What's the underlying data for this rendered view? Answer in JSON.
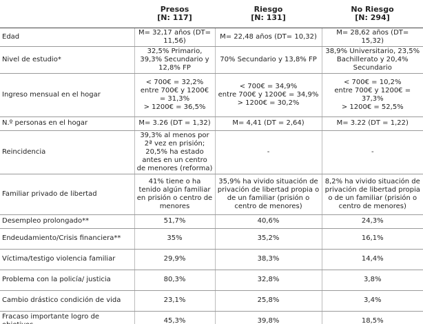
{
  "table": {
    "header": [
      {
        "title": "Presos",
        "n": "[N: 117]"
      },
      {
        "title": "Riesgo",
        "n": "[N: 131]"
      },
      {
        "title": "No Riesgo",
        "n": "[N: 294]"
      }
    ],
    "rows": [
      {
        "label": "Edad",
        "cells": [
          [
            "M= 32,17 años (DT= 11,56)"
          ],
          [
            "M= 22,48 años (DT= 10,32)"
          ],
          [
            "M= 28,62 años (DT= 15,32)"
          ]
        ]
      },
      {
        "label": "Nivel de estudio*",
        "cells": [
          [
            "32,5% Primario, 39,3% Secundario y 12,8% FP"
          ],
          [
            "70% Secundario y 13,8% FP"
          ],
          [
            "38,9% Universitario, 23,5% Bachillerato y 20,4% Secundario"
          ]
        ]
      },
      {
        "label": "Ingreso mensual en el hogar",
        "cells": [
          [
            "< 700€ = 32,2%",
            "entre 700€ y 1200€ = 31,3%",
            "> 1200€ = 36,5%"
          ],
          [
            "< 700€ = 34,9%",
            "entre 700€ y 1200€ = 34,9%",
            "> 1200€ = 30,2%"
          ],
          [
            "< 700€ = 10,2%",
            "entre 700€ y 1200€ = 37,3%",
            "> 1200€ = 52,5%"
          ]
        ]
      },
      {
        "label": "N.º personas en el hogar",
        "cells": [
          [
            "M= 3.26 (DT = 1,32)"
          ],
          [
            "M= 4,41 (DT = 2,64)"
          ],
          [
            "M= 3.22 (DT = 1,22)"
          ]
        ]
      },
      {
        "label": "Reincidencia",
        "cells": [
          [
            "39,3% al menos por 2ª vez en prisión; 20,5% ha estado antes en un centro de menores (reforma)"
          ],
          [
            "-"
          ],
          [
            "-"
          ]
        ]
      },
      {
        "label": "Familiar privado de libertad",
        "cells": [
          [
            "41% tiene o ha tenido algún familiar en prisión o centro de menores"
          ],
          [
            "35,9% ha vivido situación de privación de libertad propia o de un familiar (prisión o centro de menores)"
          ],
          [
            "8,2% ha vivido situación de privación de libertad propia o de un familiar (prisión o centro de menores)"
          ]
        ]
      },
      {
        "label": "Desempleo prolongado**",
        "cells": [
          [
            "51,7%"
          ],
          [
            "40,6%"
          ],
          [
            "24,3%"
          ]
        ]
      },
      {
        "label": "Endeudamiento/Crisis financiera**",
        "cells": [
          [
            "35%"
          ],
          [
            "35,2%"
          ],
          [
            "16,1%"
          ]
        ]
      },
      {
        "label": "Víctima/testigo violencia familiar",
        "cells": [
          [
            "29,9%"
          ],
          [
            "38,3%"
          ],
          [
            "14,4%"
          ]
        ]
      },
      {
        "label": "Problema con la policía/ justicia",
        "cells": [
          [
            "80,3%"
          ],
          [
            "32,8%"
          ],
          [
            "3,8%"
          ]
        ]
      },
      {
        "label": "Cambio drástico condición de vida",
        "cells": [
          [
            "23,1%"
          ],
          [
            "25,8%"
          ],
          [
            "3,4%"
          ]
        ]
      },
      {
        "label": "Fracaso importante logro de objetivos",
        "cells": [
          [
            "45,3%"
          ],
          [
            "39,8%"
          ],
          [
            "18,5%"
          ]
        ]
      }
    ]
  }
}
